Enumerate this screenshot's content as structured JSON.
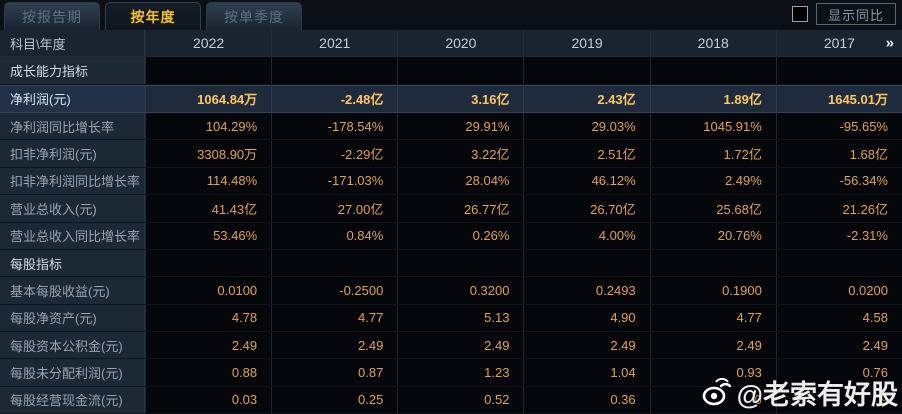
{
  "tabs": [
    {
      "label": "按报告期",
      "active": false
    },
    {
      "label": "按年度",
      "active": true
    },
    {
      "label": "按单季度",
      "active": false
    }
  ],
  "controls": {
    "yoy_checkbox_checked": false,
    "yoy_button_label": "显示同比"
  },
  "table": {
    "corner_label": "科目\\年度",
    "years": [
      "2022",
      "2021",
      "2020",
      "2019",
      "2018",
      "2017"
    ],
    "more_columns_icon": "»",
    "rows": [
      {
        "type": "section",
        "label": "成长能力指标",
        "values": [
          "",
          "",
          "",
          "",
          "",
          ""
        ]
      },
      {
        "type": "highlight",
        "label": "净利润(元)",
        "values": [
          "1064.84万",
          "-2.48亿",
          "3.16亿",
          "2.43亿",
          "1.89亿",
          "1645.01万"
        ]
      },
      {
        "type": "normal",
        "label": "净利润同比增长率",
        "values": [
          "104.29%",
          "-178.54%",
          "29.91%",
          "29.03%",
          "1045.91%",
          "-95.65%"
        ]
      },
      {
        "type": "normal",
        "label": "扣非净利润(元)",
        "values": [
          "3308.90万",
          "-2.29亿",
          "3.22亿",
          "2.51亿",
          "1.72亿",
          "1.68亿"
        ]
      },
      {
        "type": "normal",
        "label": "扣非净利润同比增长率",
        "values": [
          "114.48%",
          "-171.03%",
          "28.04%",
          "46.12%",
          "2.49%",
          "-56.34%"
        ]
      },
      {
        "type": "normal",
        "label": "营业总收入(元)",
        "values": [
          "41.43亿",
          "27.00亿",
          "26.77亿",
          "26.70亿",
          "25.68亿",
          "21.26亿"
        ]
      },
      {
        "type": "normal",
        "label": "营业总收入同比增长率",
        "values": [
          "53.46%",
          "0.84%",
          "0.26%",
          "4.00%",
          "20.76%",
          "-2.31%"
        ]
      },
      {
        "type": "section",
        "label": "每股指标",
        "values": [
          "",
          "",
          "",
          "",
          "",
          ""
        ]
      },
      {
        "type": "normal",
        "label": "基本每股收益(元)",
        "values": [
          "0.0100",
          "-0.2500",
          "0.3200",
          "0.2493",
          "0.1900",
          "0.0200"
        ]
      },
      {
        "type": "normal",
        "label": "每股净资产(元)",
        "values": [
          "4.78",
          "4.77",
          "5.13",
          "4.90",
          "4.77",
          "4.58"
        ]
      },
      {
        "type": "normal",
        "label": "每股资本公积金(元)",
        "values": [
          "2.49",
          "2.49",
          "2.49",
          "2.49",
          "2.49",
          "2.49"
        ]
      },
      {
        "type": "normal",
        "label": "每股未分配利润(元)",
        "values": [
          "0.88",
          "0.87",
          "1.23",
          "1.04",
          "0.93",
          "0.76"
        ]
      },
      {
        "type": "normal",
        "label": "每股经营现金流(元)",
        "values": [
          "0.03",
          "0.25",
          "0.52",
          "0.36",
          "0",
          "9"
        ]
      }
    ]
  },
  "watermark": {
    "icon": "weibo-icon",
    "text": "@老索有好股"
  },
  "colors": {
    "accent_tab_active": "#f6c21b",
    "value_orange": "#e2a24e",
    "value_bold_yellow": "#ffc75e",
    "highlight_row_bg": "#1e2b3d",
    "label_cell_bg": "#1d2835",
    "header_row_bg": "#192430",
    "page_bg": "#06090d"
  }
}
